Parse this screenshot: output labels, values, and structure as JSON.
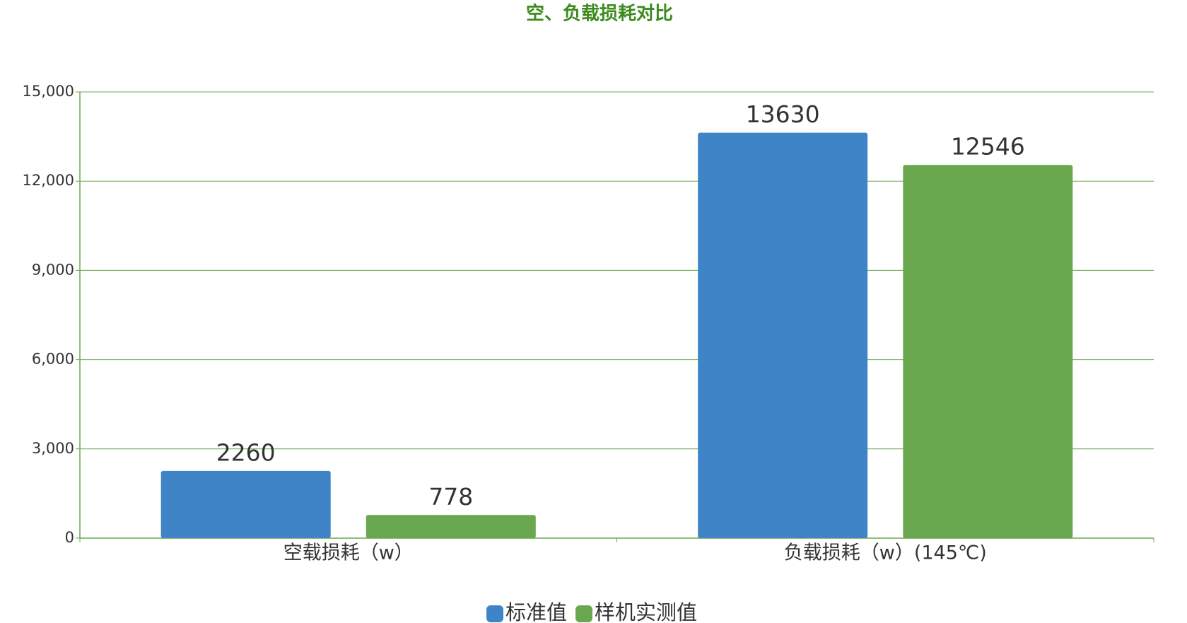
{
  "chart_data": {
    "type": "bar",
    "title": "空、负载损耗对比",
    "categories": [
      "空载损耗（w）",
      "负载损耗（w）(145℃)"
    ],
    "series": [
      {
        "name": "标准值",
        "color": "#3f84c6",
        "values": [
          2260,
          13630
        ]
      },
      {
        "name": "样机实测值",
        "color": "#6aa84f",
        "values": [
          778,
          12546
        ]
      }
    ],
    "ylim": [
      0,
      15000
    ],
    "yticks": [
      0,
      {
        "value": 3000,
        "label": "3,000"
      },
      {
        "value": 6000,
        "label": "6,000"
      },
      {
        "value": 9000,
        "label": "9,000"
      },
      {
        "value": 12000,
        "label": "12,000"
      },
      {
        "value": 15000,
        "label": "15,000"
      }
    ],
    "grid": true,
    "legend": "bottom"
  }
}
